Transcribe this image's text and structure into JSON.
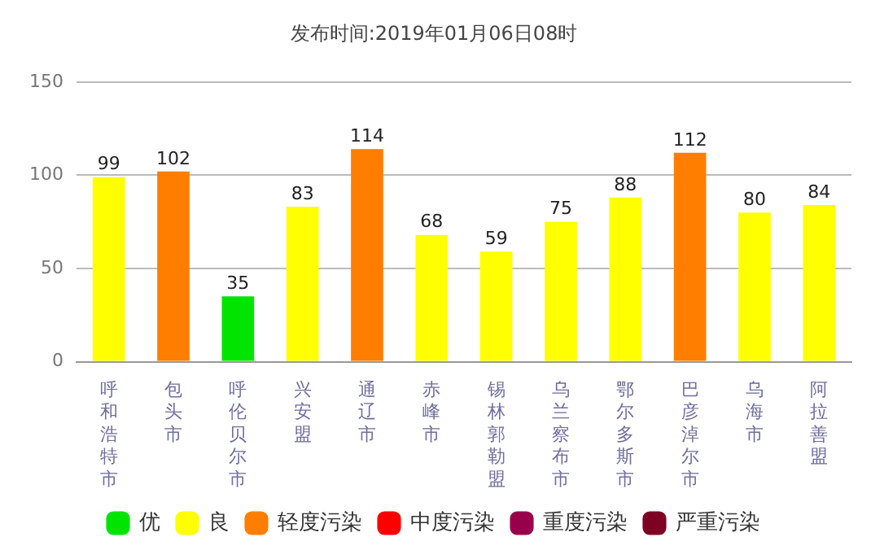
{
  "chart_data": {
    "type": "bar",
    "title": "发布时间:2019年01月06日08时",
    "categories": [
      "呼和浩特市",
      "包头市",
      "呼伦贝尔市",
      "兴安盟",
      "通辽市",
      "赤峰市",
      "锡林郭勒盟",
      "乌兰察布市",
      "鄂尔多斯市",
      "巴彦淖尔市",
      "乌海市",
      "阿拉善盟"
    ],
    "series": [
      {
        "name": "优",
        "color": "#00e400",
        "values": [
          null,
          null,
          35,
          null,
          null,
          null,
          null,
          null,
          null,
          null,
          null,
          null
        ]
      },
      {
        "name": "良",
        "color": "#ffff00",
        "values": [
          99,
          null,
          null,
          83,
          null,
          68,
          59,
          75,
          88,
          null,
          80,
          84
        ]
      },
      {
        "name": "轻度污染",
        "color": "#ff7e00",
        "values": [
          null,
          102,
          null,
          null,
          114,
          null,
          null,
          null,
          null,
          112,
          null,
          null
        ]
      },
      {
        "name": "中度污染",
        "color": "#ff0000",
        "values": [
          null,
          null,
          null,
          null,
          null,
          null,
          null,
          null,
          null,
          null,
          null,
          null
        ]
      },
      {
        "name": "重度污染",
        "color": "#99004c",
        "values": [
          null,
          null,
          null,
          null,
          null,
          null,
          null,
          null,
          null,
          null,
          null,
          null
        ]
      },
      {
        "name": "严重污染",
        "color": "#7e0023",
        "values": [
          null,
          null,
          null,
          null,
          null,
          null,
          null,
          null,
          null,
          null,
          null,
          null
        ]
      }
    ],
    "ylim": [
      0,
      150
    ],
    "yticks": [
      0,
      50,
      100,
      150
    ],
    "grid": "y",
    "legend": "bottom",
    "data_labels": true
  }
}
